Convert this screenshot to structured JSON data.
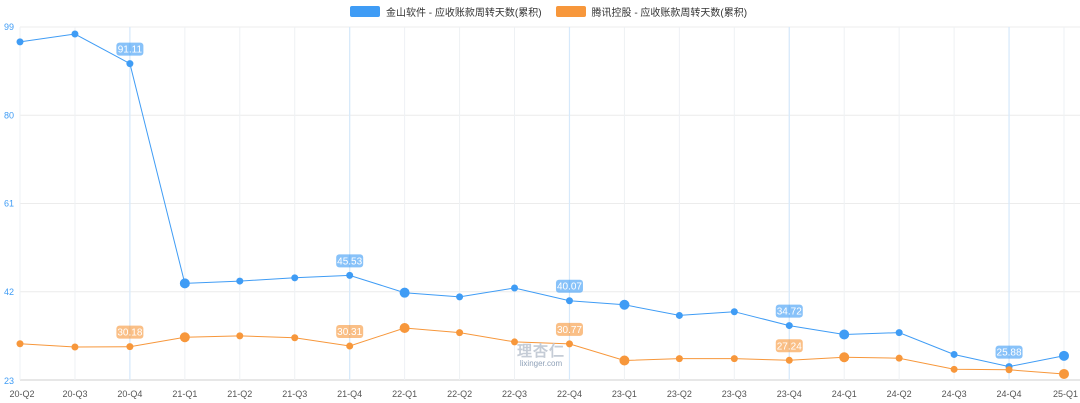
{
  "legend": {
    "position": "top-center",
    "items": [
      {
        "label": "金山软件 - 应收账款周转天数(累积)",
        "color": "#3f9cf5"
      },
      {
        "label": "腾讯控股 - 应收账款周转天数(累积)",
        "color": "#f7973b"
      }
    ]
  },
  "watermark": {
    "logo": "理杏仁",
    "site": "lixinger.com"
  },
  "chart_data": {
    "type": "line",
    "title": "",
    "xlabel": "",
    "ylabel": "",
    "grid": true,
    "ylim": [
      23,
      99
    ],
    "yticks": [
      23,
      42,
      61,
      80,
      99
    ],
    "categories": [
      "20-Q2",
      "20-Q3",
      "20-Q4",
      "21-Q1",
      "21-Q2",
      "21-Q3",
      "21-Q4",
      "22-Q1",
      "22-Q2",
      "22-Q3",
      "22-Q4",
      "23-Q1",
      "23-Q2",
      "23-Q3",
      "23-Q4",
      "24-Q1",
      "24-Q2",
      "24-Q3",
      "24-Q4",
      "25-Q1"
    ],
    "series": [
      {
        "name": "金山软件 - 应收账款周转天数(累积)",
        "color": "#3f9cf5",
        "values": [
          95.8,
          97.5,
          91.11,
          43.8,
          44.3,
          45.0,
          45.53,
          41.8,
          40.9,
          42.8,
          40.07,
          39.2,
          36.9,
          37.7,
          34.72,
          32.8,
          33.2,
          28.5,
          25.88,
          28.2
        ],
        "labels": [
          {
            "index": 2,
            "text": "91.11"
          },
          {
            "index": 6,
            "text": "45.53"
          },
          {
            "index": 10,
            "text": "40.07"
          },
          {
            "index": 14,
            "text": "34.72"
          },
          {
            "index": 18,
            "text": "25.88"
          }
        ]
      },
      {
        "name": "腾讯控股 - 应收账款周转天数(累积)",
        "color": "#f7973b",
        "values": [
          30.8,
          30.1,
          30.18,
          32.2,
          32.5,
          32.1,
          30.31,
          34.2,
          33.2,
          31.2,
          30.77,
          27.2,
          27.6,
          27.6,
          27.24,
          27.9,
          27.7,
          25.3,
          25.2,
          24.3
        ],
        "labels": [
          {
            "index": 2,
            "text": "30.18"
          },
          {
            "index": 6,
            "text": "30.31"
          },
          {
            "index": 10,
            "text": "30.77"
          },
          {
            "index": 14,
            "text": "27.24"
          }
        ]
      }
    ]
  }
}
